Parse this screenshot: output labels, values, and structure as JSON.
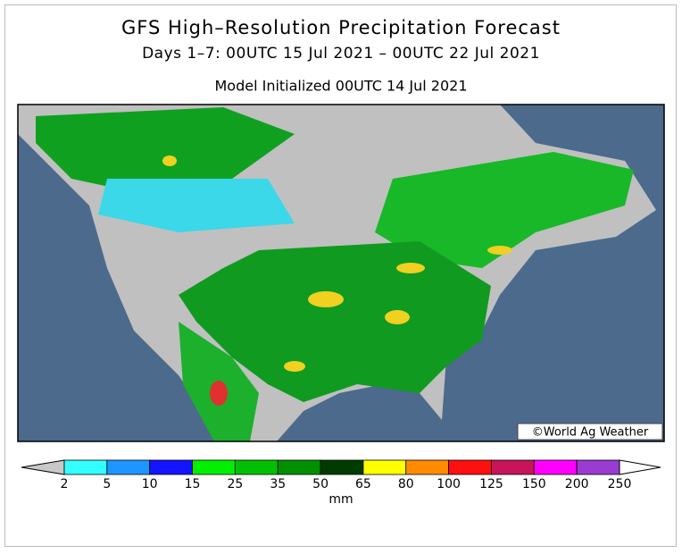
{
  "header": {
    "title": "GFS High–Resolution Precipitation Forecast",
    "subtitle": "Days 1–7: 00UTC 15 Jul 2021 – 00UTC 22 Jul 2021",
    "initialized": "Model Initialized 00UTC 14 Jul 2021"
  },
  "map": {
    "credit": "©World Ag Weather"
  },
  "legend": {
    "colors": [
      "#c8c8c8",
      "#33ffff",
      "#1e96ff",
      "#1414ff",
      "#00f000",
      "#00c000",
      "#009000",
      "#003c00",
      "#ffff00",
      "#ff8c00",
      "#ff1010",
      "#c8145a",
      "#ff00ff",
      "#9a3cd2",
      "#ffffff"
    ],
    "ticks": [
      2,
      5,
      10,
      15,
      25,
      35,
      50,
      65,
      80,
      100,
      125,
      150,
      200,
      250
    ],
    "unit": "mm"
  }
}
